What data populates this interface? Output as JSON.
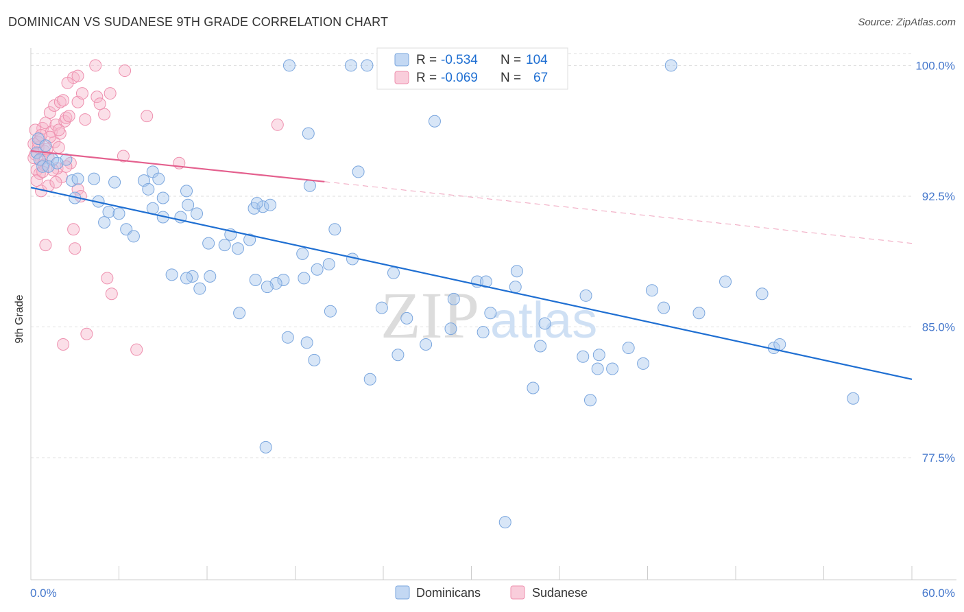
{
  "title": "DOMINICAN VS SUDANESE 9TH GRADE CORRELATION CHART",
  "source": "Source: ZipAtlas.com",
  "watermark": {
    "zip": "ZIP",
    "atlas": "atlas"
  },
  "colors": {
    "dominicans_fill": "#a9c8ee",
    "dominicans_stroke": "#7aa6de",
    "dominicans_line": "#1f6fd2",
    "sudanese_fill": "#f6b8cc",
    "sudanese_stroke": "#ee8fae",
    "sudanese_line": "#e4608e",
    "axis_label": "#4477cc",
    "grid": "#dddddd"
  },
  "legend_top": [
    {
      "r_label": "R =",
      "r_value": "-0.534",
      "n_label": "N =",
      "n_value": "104"
    },
    {
      "r_label": "R =",
      "r_value": "-0.069",
      "n_label": "N =",
      "n_value": "67"
    }
  ],
  "legend_bottom": [
    "Dominicans",
    "Sudanese"
  ],
  "chart_data": {
    "type": "scatter",
    "xlabel": "",
    "ylabel": "9th Grade",
    "xlim": [
      0,
      60
    ],
    "ylim": [
      70.5,
      101
    ],
    "x_tick_labels": [
      "0.0%",
      "60.0%"
    ],
    "y_ticks": [
      77.5,
      85.0,
      92.5,
      100.0
    ],
    "y_tick_labels": [
      "77.5%",
      "85.0%",
      "92.5%",
      "100.0%"
    ],
    "grid": true,
    "legend_position": "top-center",
    "series": [
      {
        "name": "Dominicans",
        "trend": {
          "x": [
            0,
            60
          ],
          "y": [
            93.0,
            82.0
          ],
          "style": "solid"
        },
        "points": [
          [
            0.5,
            95.8
          ],
          [
            0.4,
            95.0
          ],
          [
            0.6,
            94.6
          ],
          [
            0.8,
            94.2
          ],
          [
            1.0,
            95.4
          ],
          [
            1.5,
            94.6
          ],
          [
            2.4,
            94.6
          ],
          [
            2.8,
            93.4
          ],
          [
            3.2,
            93.5
          ],
          [
            4.3,
            93.5
          ],
          [
            3.0,
            92.4
          ],
          [
            4.6,
            92.2
          ],
          [
            5.3,
            91.6
          ],
          [
            5.0,
            91.0
          ],
          [
            6.0,
            91.5
          ],
          [
            5.7,
            93.3
          ],
          [
            6.5,
            90.6
          ],
          [
            7.0,
            90.2
          ],
          [
            8.3,
            91.8
          ],
          [
            7.7,
            93.4
          ],
          [
            8.0,
            92.9
          ],
          [
            9.0,
            92.4
          ],
          [
            8.3,
            93.9
          ],
          [
            8.7,
            93.5
          ],
          [
            10.2,
            91.3
          ],
          [
            10.7,
            92.0
          ],
          [
            9.0,
            91.3
          ],
          [
            10.6,
            92.8
          ],
          [
            11.3,
            91.5
          ],
          [
            12.1,
            89.8
          ],
          [
            12.2,
            87.9
          ],
          [
            13.6,
            90.3
          ],
          [
            13.2,
            89.7
          ],
          [
            14.1,
            89.5
          ],
          [
            15.2,
            91.8
          ],
          [
            14.9,
            90.0
          ],
          [
            15.8,
            91.9
          ],
          [
            15.4,
            92.1
          ],
          [
            16.3,
            92.0
          ],
          [
            11.0,
            87.9
          ],
          [
            9.6,
            88.0
          ],
          [
            10.6,
            87.8
          ],
          [
            11.5,
            87.2
          ],
          [
            14.2,
            85.8
          ],
          [
            15.3,
            87.7
          ],
          [
            17.2,
            87.7
          ],
          [
            16.7,
            87.5
          ],
          [
            16.1,
            87.3
          ],
          [
            18.6,
            87.8
          ],
          [
            20.3,
            88.6
          ],
          [
            17.5,
            84.4
          ],
          [
            18.8,
            84.1
          ],
          [
            19.3,
            83.1
          ],
          [
            18.5,
            89.2
          ],
          [
            19.5,
            88.3
          ],
          [
            20.7,
            90.6
          ],
          [
            21.9,
            88.9
          ],
          [
            20.4,
            85.9
          ],
          [
            22.3,
            93.9
          ],
          [
            23.1,
            82.0
          ],
          [
            23.9,
            86.1
          ],
          [
            25.0,
            83.4
          ],
          [
            24.7,
            88.1
          ],
          [
            25.6,
            85.5
          ],
          [
            26.9,
            84.0
          ],
          [
            28.8,
            86.6
          ],
          [
            28.6,
            84.9
          ],
          [
            30.4,
            87.6
          ],
          [
            31.0,
            87.6
          ],
          [
            30.8,
            84.7
          ],
          [
            31.3,
            85.8
          ],
          [
            33.1,
            88.2
          ],
          [
            33.0,
            87.3
          ],
          [
            34.7,
            83.9
          ],
          [
            34.2,
            81.5
          ],
          [
            35.0,
            85.2
          ],
          [
            37.8,
            86.8
          ],
          [
            37.6,
            83.3
          ],
          [
            38.1,
            80.8
          ],
          [
            38.6,
            82.6
          ],
          [
            39.6,
            82.6
          ],
          [
            38.7,
            83.4
          ],
          [
            40.7,
            83.8
          ],
          [
            41.7,
            82.9
          ],
          [
            42.3,
            87.1
          ],
          [
            43.1,
            86.1
          ],
          [
            45.5,
            85.8
          ],
          [
            47.3,
            87.6
          ],
          [
            49.8,
            86.9
          ],
          [
            50.6,
            83.8
          ],
          [
            51.0,
            84.0
          ],
          [
            56.0,
            80.9
          ],
          [
            32.3,
            73.8
          ],
          [
            16.0,
            78.1
          ],
          [
            21.8,
            100.0
          ],
          [
            17.6,
            100.0
          ],
          [
            22.9,
            100.0
          ],
          [
            43.6,
            100.0
          ],
          [
            32.4,
            100.0
          ],
          [
            27.5,
            96.8
          ],
          [
            18.9,
            96.1
          ],
          [
            19.0,
            93.1
          ],
          [
            1.2,
            94.2
          ],
          [
            1.8,
            94.4
          ]
        ]
      },
      {
        "name": "Sudanese",
        "trend": {
          "x": [
            0,
            60
          ],
          "y": [
            95.1,
            89.8
          ],
          "solid_until_x": 20.0,
          "style": "solid-then-dashed"
        },
        "points": [
          [
            0.2,
            95.5
          ],
          [
            0.3,
            94.9
          ],
          [
            0.5,
            95.3
          ],
          [
            0.7,
            94.6
          ],
          [
            0.4,
            94.0
          ],
          [
            0.6,
            93.8
          ],
          [
            0.9,
            95.1
          ],
          [
            1.2,
            94.7
          ],
          [
            1.6,
            95.6
          ],
          [
            1.9,
            95.3
          ],
          [
            0.8,
            96.4
          ],
          [
            1.0,
            96.7
          ],
          [
            1.4,
            96.2
          ],
          [
            1.7,
            96.6
          ],
          [
            2.0,
            96.1
          ],
          [
            2.3,
            96.8
          ],
          [
            2.4,
            97.0
          ],
          [
            1.3,
            97.3
          ],
          [
            1.6,
            97.7
          ],
          [
            2.0,
            97.9
          ],
          [
            2.6,
            97.1
          ],
          [
            3.2,
            97.9
          ],
          [
            3.5,
            98.4
          ],
          [
            4.5,
            98.2
          ],
          [
            5.0,
            97.2
          ],
          [
            5.4,
            98.4
          ],
          [
            2.9,
            99.3
          ],
          [
            3.2,
            99.4
          ],
          [
            2.5,
            99.0
          ],
          [
            4.4,
            100.0
          ],
          [
            6.4,
            99.7
          ],
          [
            0.4,
            93.4
          ],
          [
            0.7,
            92.8
          ],
          [
            1.2,
            93.1
          ],
          [
            2.1,
            93.6
          ],
          [
            3.2,
            92.9
          ],
          [
            3.4,
            92.5
          ],
          [
            2.9,
            90.6
          ],
          [
            3.0,
            89.5
          ],
          [
            1.0,
            89.7
          ],
          [
            5.2,
            87.8
          ],
          [
            5.5,
            86.9
          ],
          [
            3.8,
            84.6
          ],
          [
            2.2,
            84.0
          ],
          [
            7.2,
            83.7
          ],
          [
            7.9,
            97.1
          ],
          [
            6.3,
            94.8
          ],
          [
            10.1,
            94.4
          ],
          [
            16.8,
            96.6
          ],
          [
            1.8,
            94.1
          ],
          [
            0.6,
            95.8
          ],
          [
            1.1,
            95.2
          ],
          [
            0.9,
            94.3
          ],
          [
            2.7,
            94.4
          ],
          [
            0.3,
            96.3
          ],
          [
            1.5,
            94.0
          ],
          [
            0.5,
            95.6
          ],
          [
            1.9,
            96.3
          ],
          [
            3.7,
            96.9
          ],
          [
            2.4,
            94.2
          ],
          [
            0.2,
            94.7
          ],
          [
            0.8,
            93.9
          ],
          [
            1.3,
            95.9
          ],
          [
            2.2,
            98.0
          ],
          [
            4.7,
            97.8
          ],
          [
            0.7,
            96.0
          ],
          [
            1.7,
            93.3
          ]
        ]
      }
    ]
  }
}
